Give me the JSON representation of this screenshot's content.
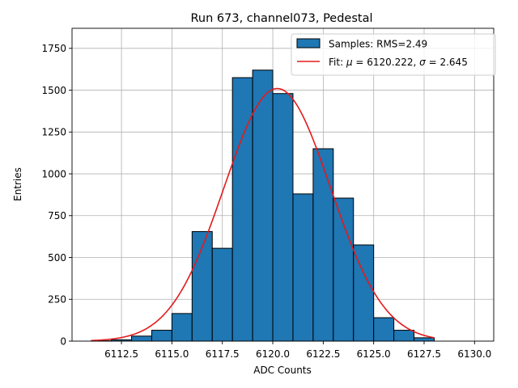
{
  "chart_data": {
    "type": "bar",
    "title": "Run 673, channel073, Pedestal",
    "xlabel": "ADC Counts",
    "ylabel": "Entries",
    "xlim": [
      6110.05,
      6130.95
    ],
    "ylim": [
      0,
      1870
    ],
    "grid": true,
    "legend_position": "top-right",
    "xticks": [
      6112.5,
      6115.0,
      6117.5,
      6120.0,
      6122.5,
      6125.0,
      6127.5,
      6130.0
    ],
    "xtick_labels": [
      "6112.5",
      "6115.0",
      "6117.5",
      "6120.0",
      "6122.5",
      "6125.0",
      "6127.5",
      "6130.0"
    ],
    "yticks": [
      0,
      250,
      500,
      750,
      1000,
      1250,
      1500,
      1750
    ],
    "ytick_labels": [
      "0",
      "250",
      "500",
      "750",
      "1000",
      "1250",
      "1500",
      "1750"
    ],
    "histogram": {
      "name": "Samples: RMS=2.49",
      "color": "#1f77b4",
      "edge_color": "#000000",
      "bins": [
        {
          "start": 6111,
          "end": 6112,
          "count": 2
        },
        {
          "start": 6112,
          "end": 6113,
          "count": 8
        },
        {
          "start": 6113,
          "end": 6114,
          "count": 30
        },
        {
          "start": 6114,
          "end": 6115,
          "count": 65
        },
        {
          "start": 6115,
          "end": 6116,
          "count": 165
        },
        {
          "start": 6116,
          "end": 6117,
          "count": 655
        },
        {
          "start": 6117,
          "end": 6118,
          "count": 555
        },
        {
          "start": 6118,
          "end": 6119,
          "count": 1575
        },
        {
          "start": 6119,
          "end": 6120,
          "count": 1620
        },
        {
          "start": 6120,
          "end": 6121,
          "count": 1480
        },
        {
          "start": 6121,
          "end": 6122,
          "count": 880
        },
        {
          "start": 6122,
          "end": 6123,
          "count": 1150
        },
        {
          "start": 6123,
          "end": 6124,
          "count": 855
        },
        {
          "start": 6124,
          "end": 6125,
          "count": 575
        },
        {
          "start": 6125,
          "end": 6126,
          "count": 140
        },
        {
          "start": 6126,
          "end": 6127,
          "count": 65
        },
        {
          "start": 6127,
          "end": 6128,
          "count": 20
        }
      ]
    },
    "fit": {
      "label_prefix": "Fit: ",
      "mu_symbol": "μ",
      "sigma_symbol": "σ",
      "mu": "6120.222",
      "sigma": "2.645",
      "amplitude": 1510,
      "x_range": [
        6111,
        6128
      ],
      "color": "#e31a1c"
    }
  }
}
